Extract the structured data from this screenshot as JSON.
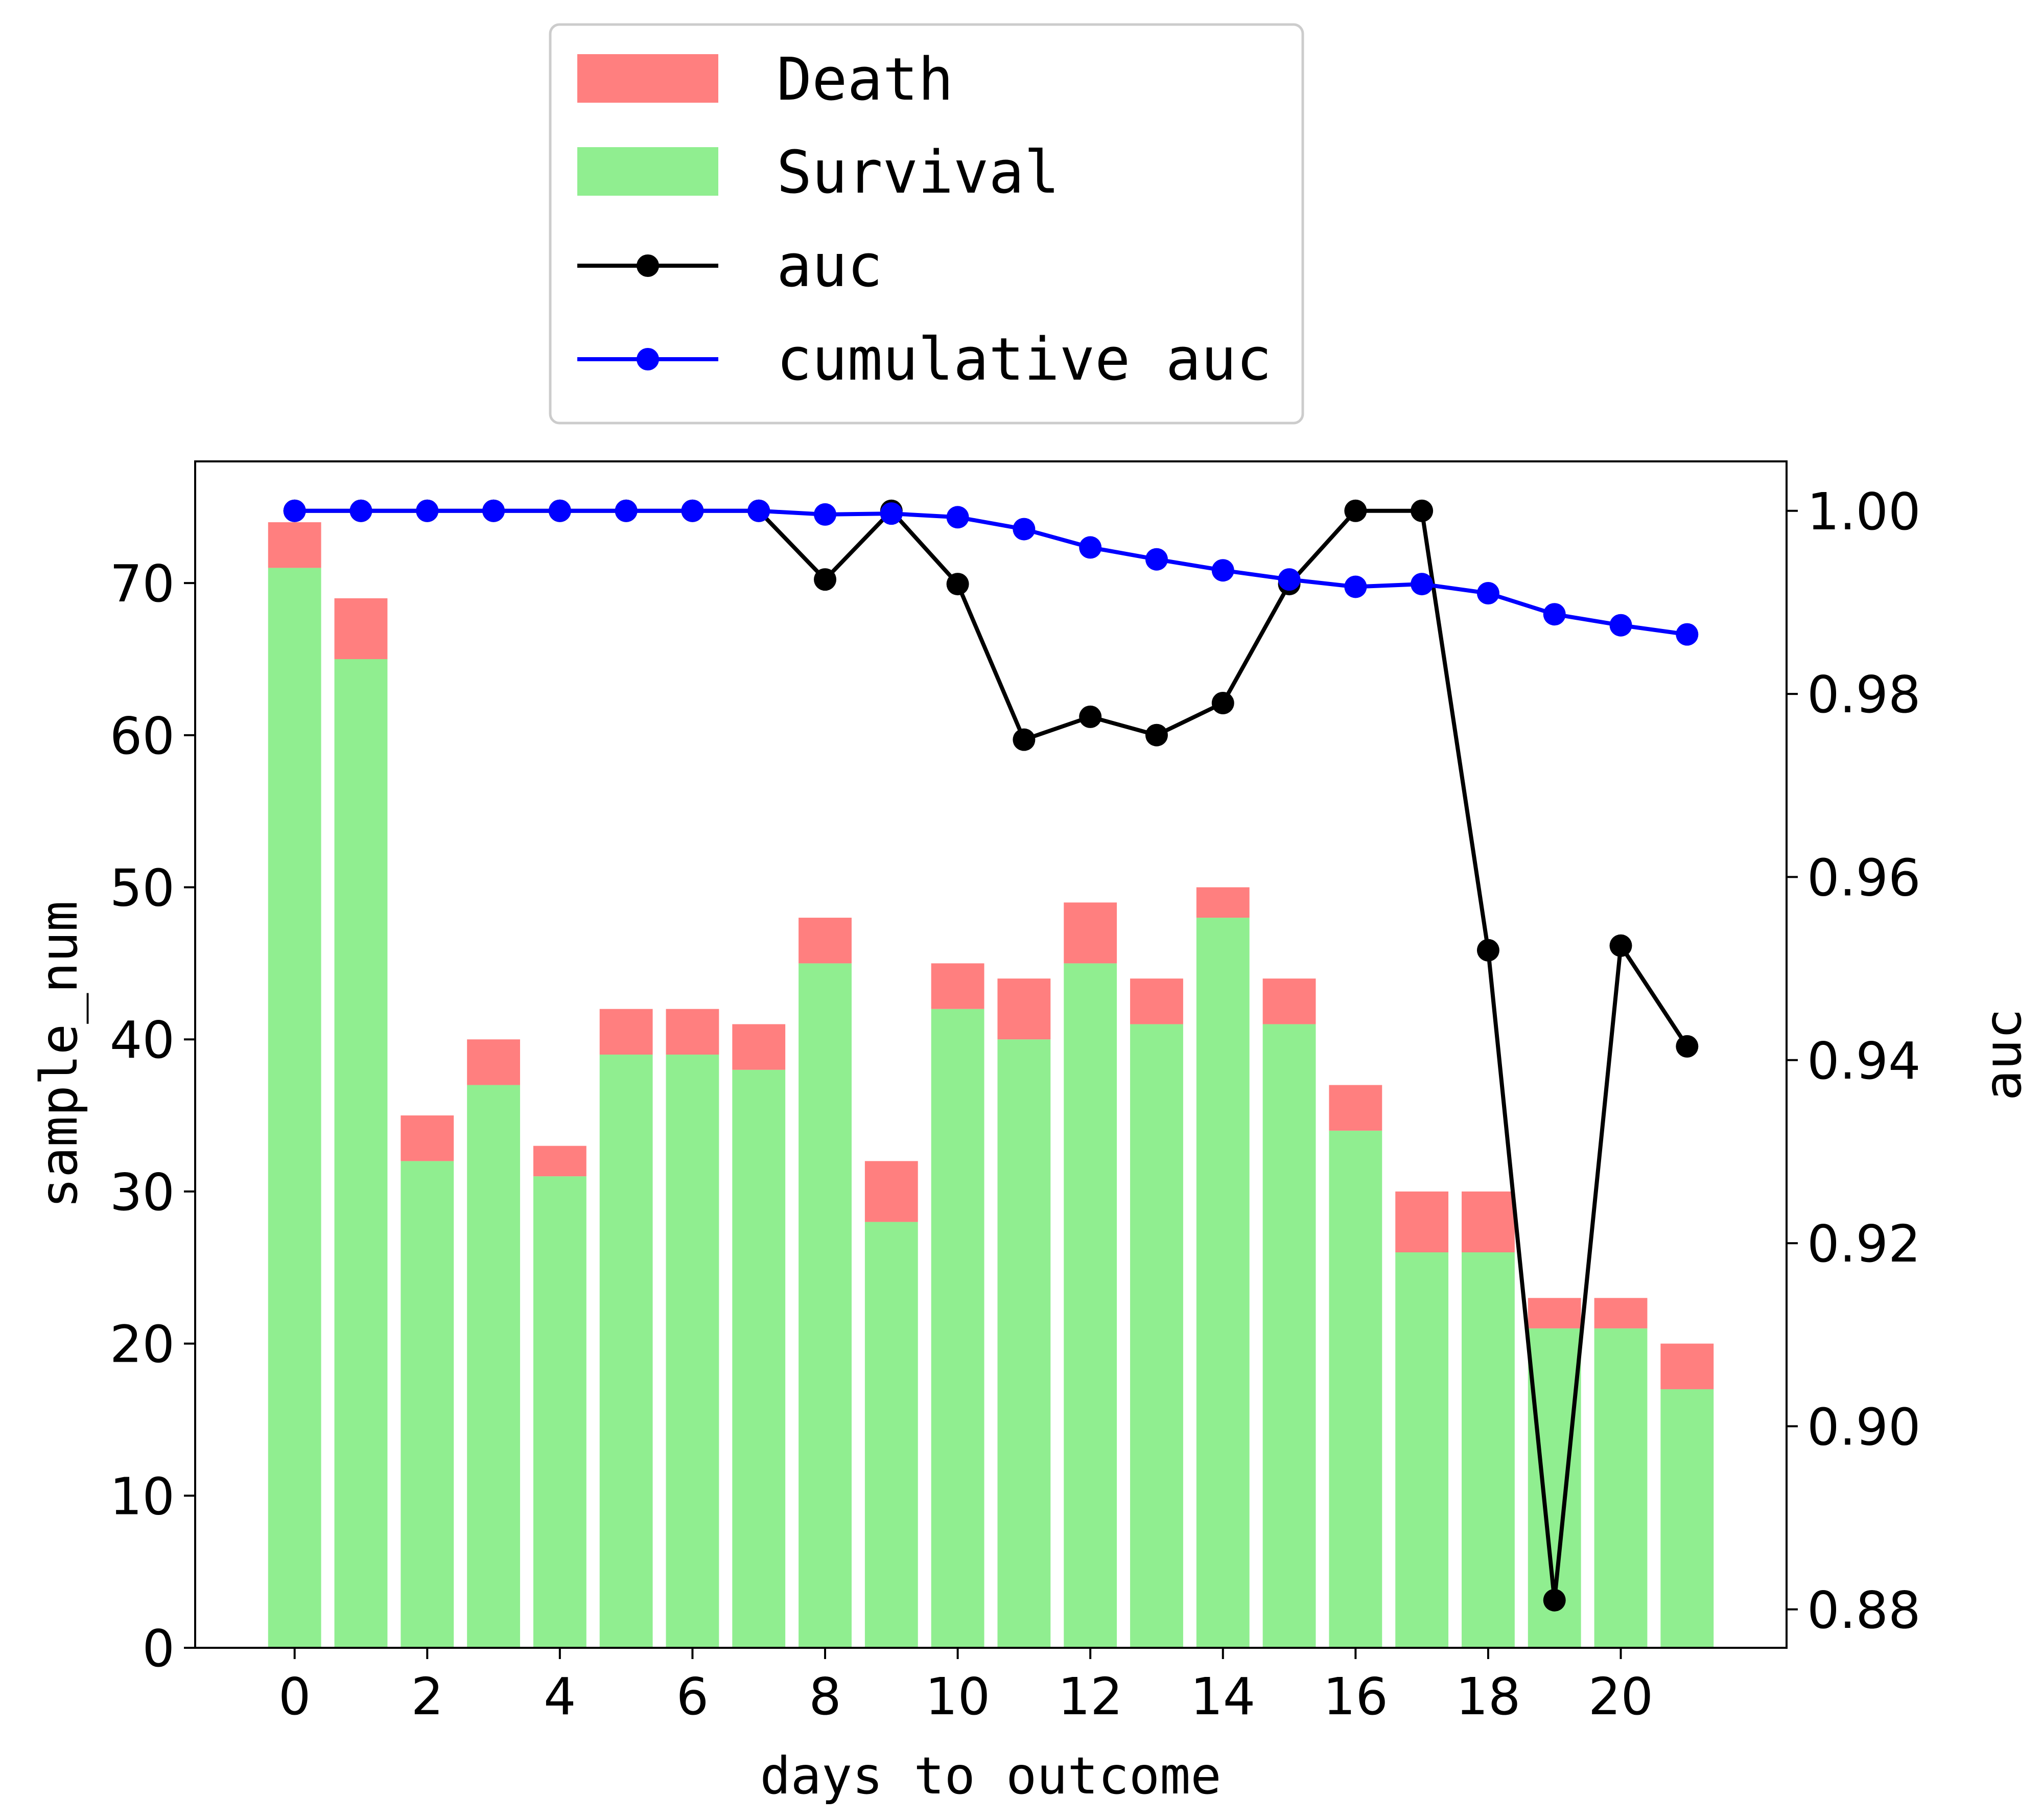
{
  "colors": {
    "death": "#FF7F7F",
    "survival": "#90EE90",
    "auc": "#000000",
    "cumulative_auc": "#0000FF"
  },
  "chart_data": {
    "type": "bar",
    "stacked": true,
    "title": "",
    "xlabel": "days to outcome",
    "ylabel": "sample_num",
    "y2label": "auc",
    "categories": [
      0,
      1,
      2,
      3,
      4,
      5,
      6,
      7,
      8,
      9,
      10,
      11,
      12,
      13,
      14,
      15,
      16,
      17,
      18,
      19,
      20,
      21
    ],
    "x_ticks": [
      "0",
      "2",
      "4",
      "6",
      "8",
      "10",
      "12",
      "14",
      "16",
      "18",
      "20"
    ],
    "y_ticks": [
      "0",
      "10",
      "20",
      "30",
      "40",
      "50",
      "60",
      "70"
    ],
    "y2_ticks": [
      "0.88",
      "0.90",
      "0.92",
      "0.94",
      "0.96",
      "0.98",
      "1.00"
    ],
    "ylim": [
      0,
      78
    ],
    "y2lim": [
      0.8758,
      1.0054
    ],
    "xlim": [
      -1.5,
      22.5
    ],
    "legend_position": "upper-center-outside",
    "series": [
      {
        "name": "Survival",
        "type": "bar",
        "values": [
          71,
          65,
          32,
          37,
          31,
          39,
          39,
          38,
          45,
          28,
          42,
          40,
          45,
          41,
          48,
          41,
          34,
          26,
          26,
          21,
          21,
          17
        ]
      },
      {
        "name": "Death",
        "type": "bar",
        "values": [
          3,
          4,
          3,
          3,
          2,
          3,
          3,
          3,
          3,
          4,
          3,
          4,
          4,
          3,
          2,
          3,
          3,
          4,
          4,
          2,
          2,
          3
        ]
      },
      {
        "name": "auc",
        "type": "line",
        "axis": "right",
        "values": [
          1.0,
          1.0,
          1.0,
          1.0,
          1.0,
          1.0,
          1.0,
          1.0,
          0.9925,
          1.0,
          0.992,
          0.975,
          0.9775,
          0.9755,
          0.979,
          0.992,
          1.0,
          1.0,
          0.952,
          0.881,
          0.9525,
          0.9415
        ]
      },
      {
        "name": "cumulative auc",
        "type": "line",
        "axis": "right",
        "values": [
          1.0,
          1.0,
          1.0,
          1.0,
          1.0,
          1.0,
          1.0,
          1.0,
          0.9996,
          0.9997,
          0.9993,
          0.998,
          0.996,
          0.9947,
          0.9935,
          0.9925,
          0.9917,
          0.992,
          0.991,
          0.9887,
          0.9875,
          0.9865
        ]
      }
    ],
    "legend": [
      "Death",
      "Survival",
      "auc",
      "cumulative auc"
    ]
  }
}
